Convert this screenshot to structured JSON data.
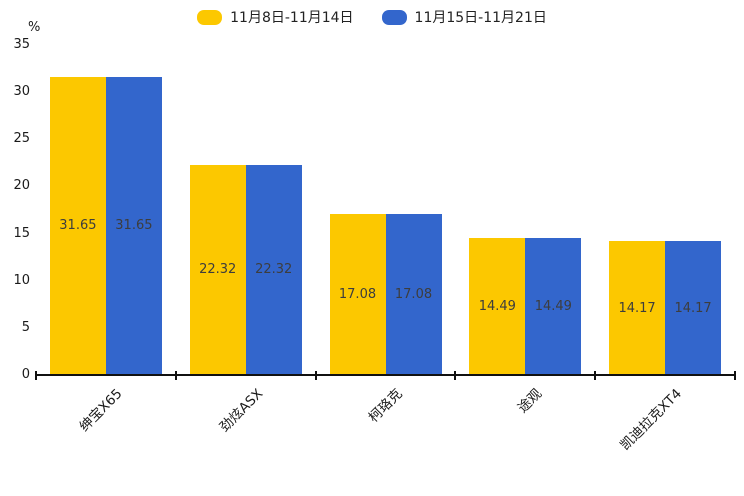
{
  "chart_data": {
    "type": "bar",
    "title": "",
    "categories": [
      "绅宝X65",
      "劲炫ASX",
      "柯珞克",
      "途观",
      "凯迪拉克XT4"
    ],
    "series": [
      {
        "name": "11月8日-11月14日",
        "color": "#fcc800",
        "values": [
          31.65,
          22.32,
          17.08,
          14.49,
          14.17
        ]
      },
      {
        "name": "11月15日-11月21日",
        "color": "#3366cc",
        "values": [
          31.65,
          22.32,
          17.08,
          14.49,
          14.17
        ]
      }
    ],
    "xlabel": "",
    "ylabel": "%",
    "ylim": [
      0,
      35
    ],
    "yticks": [
      0,
      5,
      10,
      15,
      20,
      25,
      30,
      35
    ],
    "grid": false,
    "legend_position": "top-center",
    "value_label_position": "inside-center"
  },
  "colors": {
    "background": "#ffffff",
    "axis": "#111111",
    "tick_label": "#1a1a1a",
    "value_label": "#3d3d3d"
  }
}
